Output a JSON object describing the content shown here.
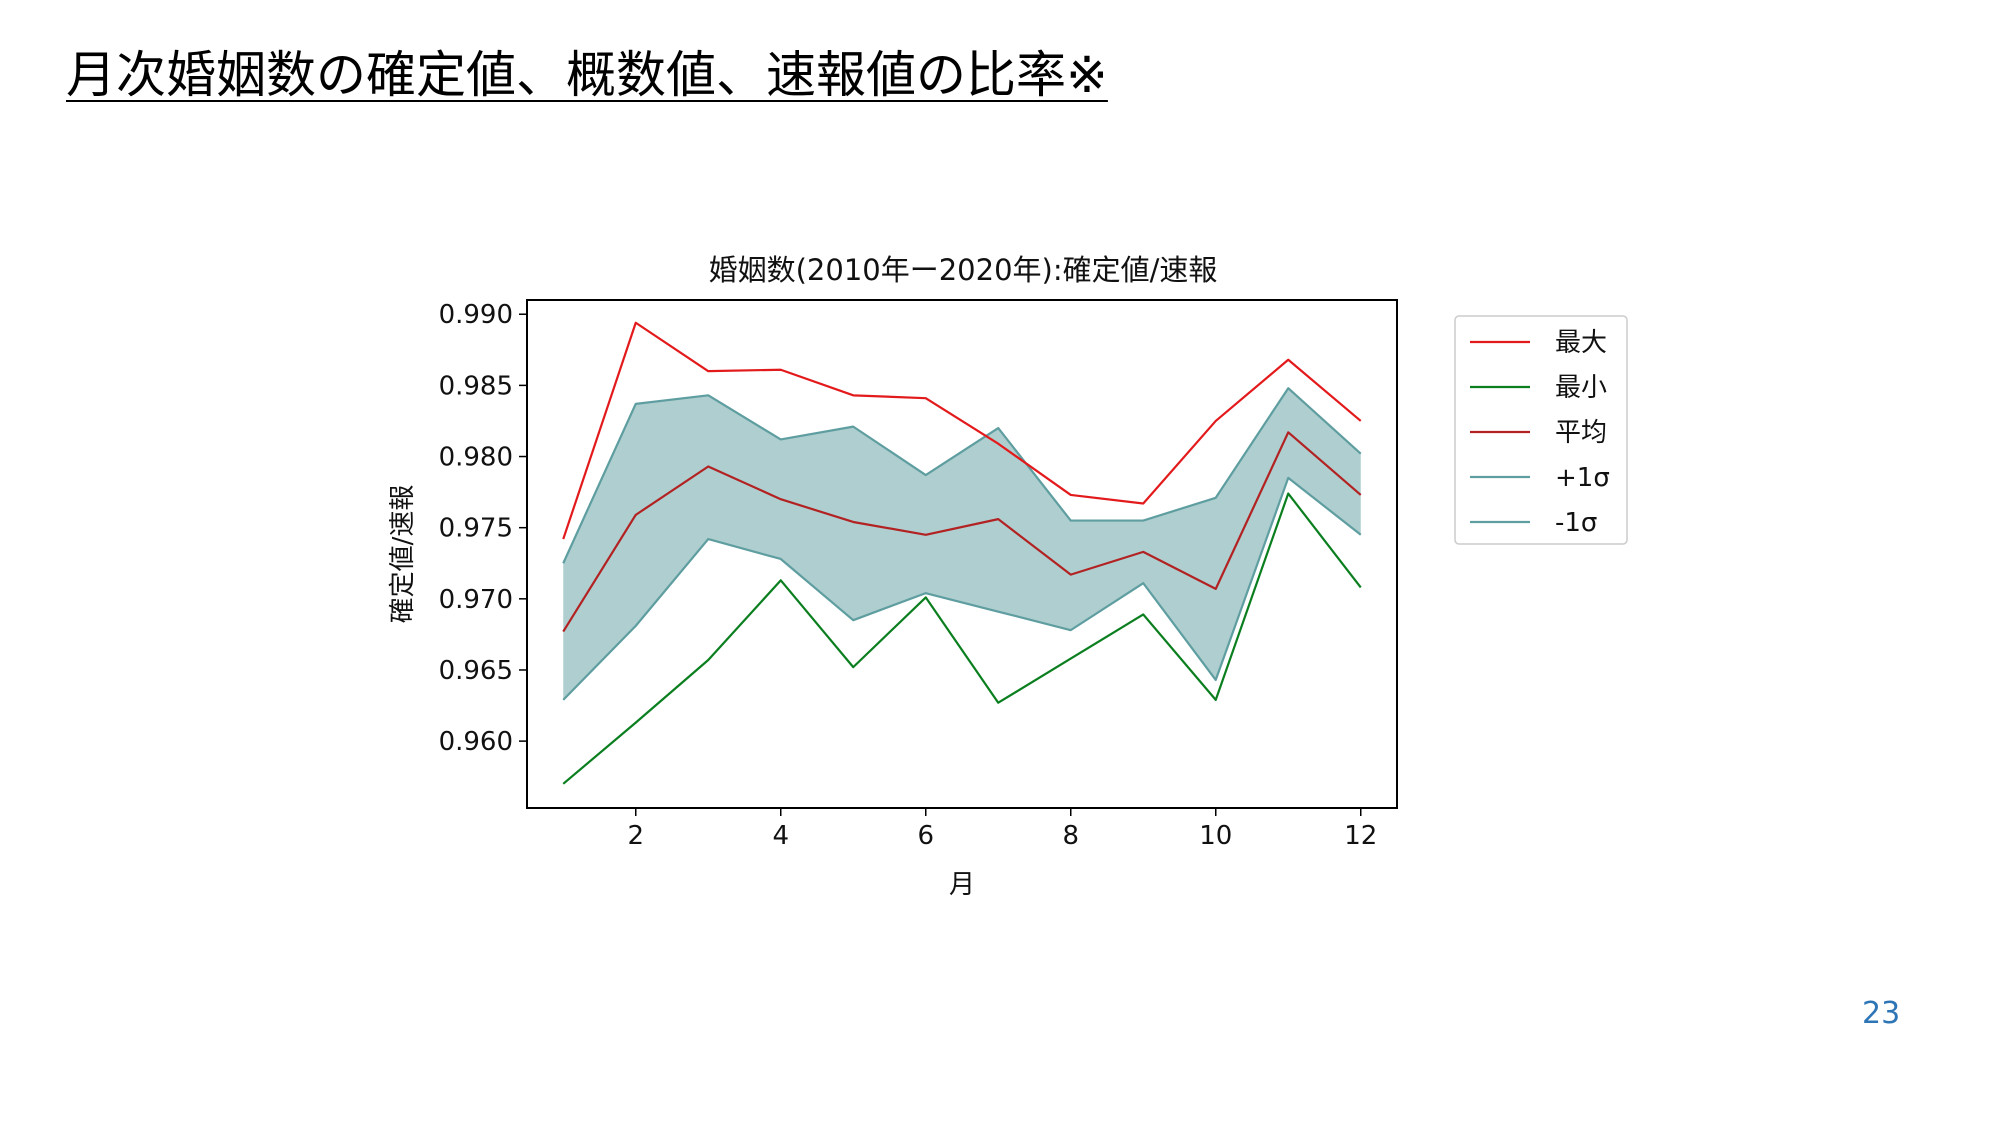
{
  "slide": {
    "title": "月次婚姻数の確定値、概数値、速報値の比率※",
    "page_number": "23"
  },
  "colors": {
    "max": "#e31a1c",
    "min": "#0b7f1f",
    "mean": "#b22222",
    "sigma_line": "#5f9ea0",
    "band_fill": "#5f9ea0"
  },
  "chart_data": {
    "type": "line",
    "title": "婚姻数(2010年ー2020年):確定値/速報",
    "xlabel": "月",
    "ylabel": "確定値/速報",
    "x": [
      1,
      2,
      3,
      4,
      5,
      6,
      7,
      8,
      9,
      10,
      11,
      12
    ],
    "xlim": [
      0.5,
      12.5
    ],
    "ylim": [
      0.9553,
      0.991
    ],
    "xticks": [
      2,
      4,
      6,
      8,
      10,
      12
    ],
    "xtick_labels": [
      "2",
      "4",
      "6",
      "8",
      "10",
      "12"
    ],
    "yticks": [
      0.96,
      0.965,
      0.97,
      0.975,
      0.98,
      0.985,
      0.99
    ],
    "ytick_labels": [
      "0.960",
      "0.965",
      "0.970",
      "0.975",
      "0.980",
      "0.985",
      "0.990"
    ],
    "grid": false,
    "legend_position": "outside-right",
    "series": [
      {
        "name": "最大",
        "color_key": "max",
        "values": [
          0.9742,
          0.9894,
          0.986,
          0.9861,
          0.9843,
          0.9841,
          0.9809,
          0.9773,
          0.9767,
          0.9825,
          0.9868,
          0.9825
        ]
      },
      {
        "name": "最小",
        "color_key": "min",
        "values": [
          0.957,
          0.9613,
          0.9657,
          0.9713,
          0.9652,
          0.9701,
          0.9627,
          0.9658,
          0.9689,
          0.9629,
          0.9774,
          0.9708
        ]
      },
      {
        "name": "平均",
        "color_key": "mean",
        "values": [
          0.9677,
          0.9759,
          0.9793,
          0.977,
          0.9754,
          0.9745,
          0.9756,
          0.9717,
          0.9733,
          0.9707,
          0.9817,
          0.9773
        ]
      },
      {
        "name": "+1σ",
        "color_key": "sigma_line",
        "values": [
          0.9725,
          0.9837,
          0.9843,
          0.9812,
          0.9821,
          0.9787,
          0.982,
          0.9755,
          0.9755,
          0.9771,
          0.9848,
          0.9802
        ]
      },
      {
        "name": "-1σ",
        "color_key": "sigma_line",
        "values": [
          0.9629,
          0.9681,
          0.9742,
          0.9728,
          0.9685,
          0.9704,
          0.9691,
          0.9678,
          0.9711,
          0.9643,
          0.9785,
          0.9745
        ]
      }
    ],
    "band": {
      "upper": "+1σ",
      "lower": "-1σ",
      "color_key": "band_fill",
      "opacity": 0.5
    }
  }
}
